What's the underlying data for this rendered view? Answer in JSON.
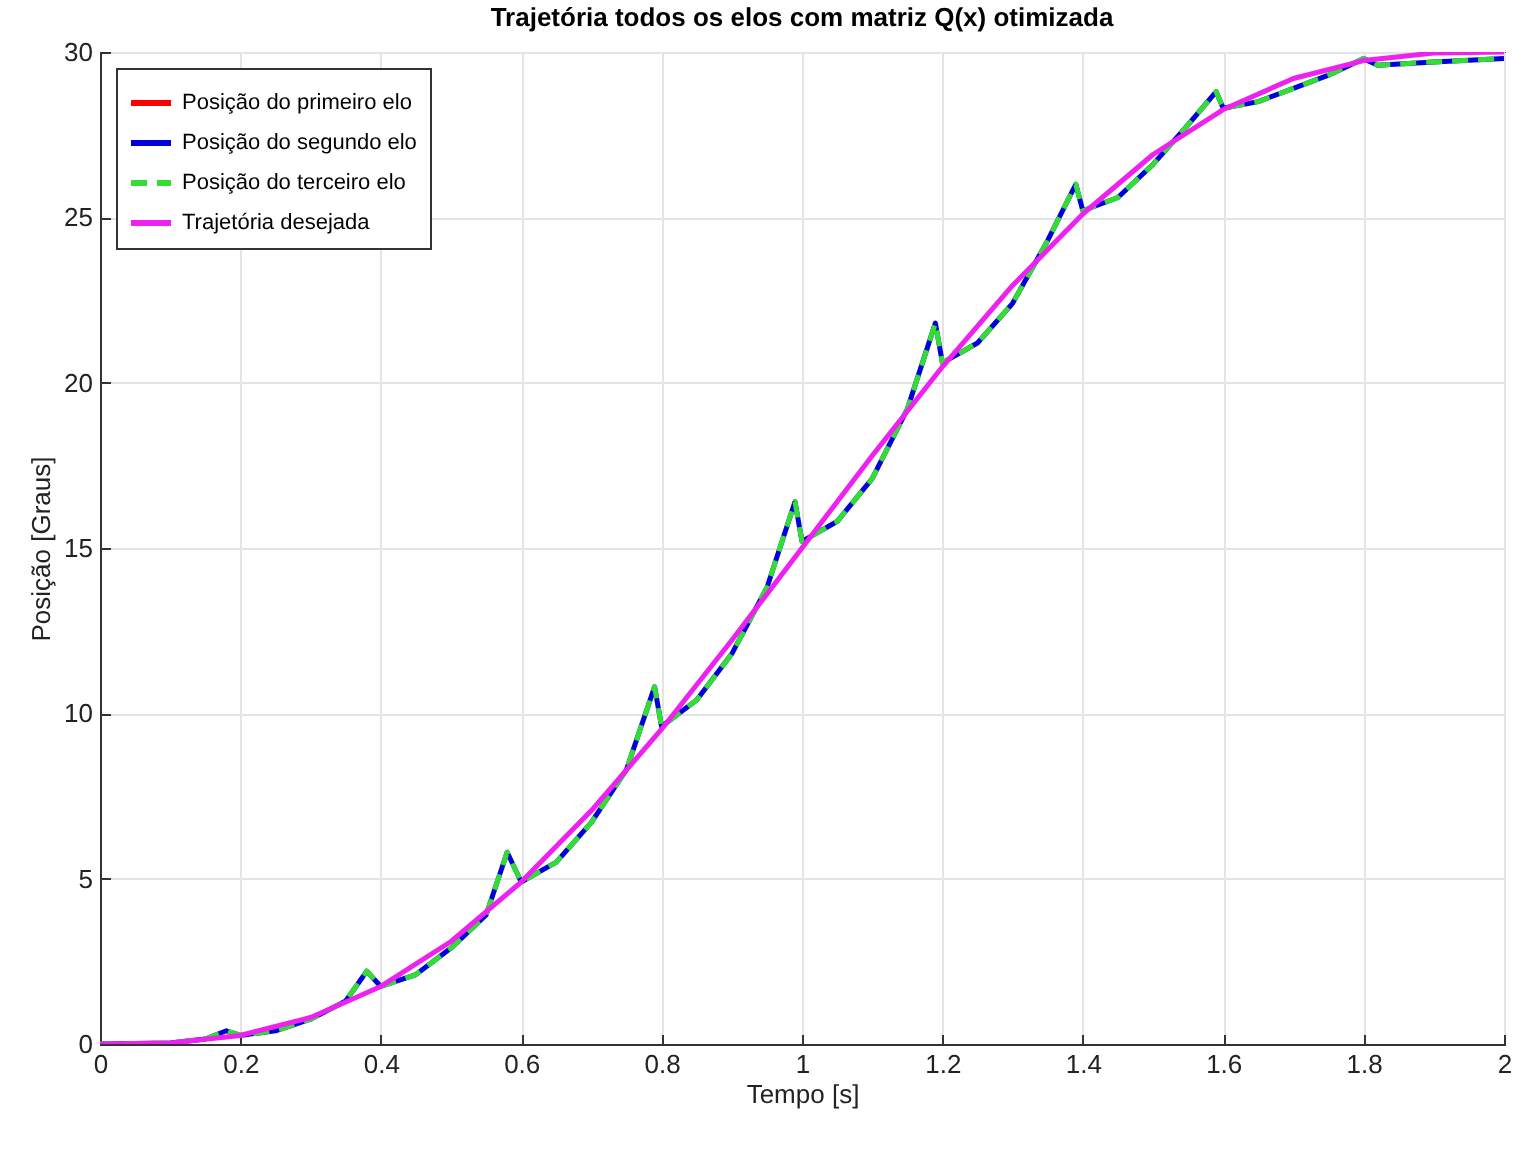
{
  "chart_data": {
    "type": "line",
    "title": "Trajetória todos os elos com matriz Q(x) otimizada",
    "xlabel": "Tempo [s]",
    "ylabel": "Posição [Graus]",
    "xlim": [
      0,
      2
    ],
    "xticks": [
      0,
      0.2,
      0.4,
      0.6,
      0.8,
      1,
      1.2,
      1.4,
      1.6,
      1.8,
      2
    ],
    "ylim": [
      0,
      30
    ],
    "yticks": [
      0,
      5,
      10,
      15,
      20,
      25,
      30
    ],
    "grid": true,
    "legend": "top left",
    "x": [
      0,
      0.1,
      0.15,
      0.18,
      0.2,
      0.25,
      0.3,
      0.35,
      0.38,
      0.4,
      0.45,
      0.5,
      0.55,
      0.58,
      0.6,
      0.65,
      0.7,
      0.75,
      0.79,
      0.8,
      0.85,
      0.9,
      0.95,
      0.99,
      1.0,
      1.05,
      1.1,
      1.15,
      1.19,
      1.2,
      1.25,
      1.3,
      1.35,
      1.39,
      1.4,
      1.45,
      1.5,
      1.55,
      1.59,
      1.6,
      1.65,
      1.7,
      1.75,
      1.8,
      1.82,
      1.9,
      2.0
    ],
    "series": [
      {
        "name": "Posição do primeiro elo",
        "color": "#ff0000",
        "line_style": "solid",
        "values": [
          null,
          null,
          null,
          null,
          null,
          null,
          null,
          null,
          null,
          null,
          null,
          null,
          null,
          null,
          null,
          null,
          null,
          null,
          null,
          null,
          null,
          null,
          null,
          null,
          null,
          null,
          null,
          null,
          null,
          null,
          null,
          null,
          null,
          null,
          null,
          null,
          null,
          null,
          null,
          null,
          null,
          null,
          null,
          null,
          null,
          null,
          null
        ]
      },
      {
        "name": "Posição do segundo elo",
        "color": "#0000dd",
        "line_style": "solid",
        "values": [
          0,
          0.03,
          0.15,
          0.4,
          0.26,
          0.4,
          0.75,
          1.3,
          2.2,
          1.74,
          2.1,
          2.9,
          3.9,
          5.8,
          4.9,
          5.5,
          6.7,
          8.3,
          10.8,
          9.6,
          10.4,
          11.8,
          13.8,
          16.4,
          15.2,
          15.8,
          17.1,
          19.2,
          21.8,
          20.6,
          21.2,
          22.4,
          24.3,
          26.0,
          25.2,
          25.6,
          26.6,
          27.8,
          28.8,
          28.3,
          28.5,
          28.9,
          29.3,
          29.8,
          29.6,
          29.7,
          29.8
        ]
      },
      {
        "name": "Posição do terceiro elo",
        "color": "#33dd33",
        "line_style": "dashed",
        "values": [
          0,
          0.03,
          0.15,
          0.4,
          0.26,
          0.4,
          0.75,
          1.3,
          2.2,
          1.74,
          2.1,
          2.9,
          3.9,
          5.8,
          4.9,
          5.5,
          6.7,
          8.3,
          10.8,
          9.6,
          10.4,
          11.8,
          13.8,
          16.4,
          15.2,
          15.8,
          17.1,
          19.2,
          21.8,
          20.6,
          21.2,
          22.4,
          24.3,
          26.0,
          25.2,
          25.6,
          26.6,
          27.8,
          28.8,
          28.3,
          28.5,
          28.9,
          29.3,
          29.8,
          29.6,
          29.7,
          29.8
        ]
      },
      {
        "name": "Trajetória desejada",
        "color": "#ee22ee",
        "line_style": "solid",
        "x": [
          0,
          0.1,
          0.2,
          0.3,
          0.4,
          0.5,
          0.6,
          0.7,
          0.8,
          0.9,
          1.0,
          1.1,
          1.2,
          1.3,
          1.4,
          1.5,
          1.6,
          1.7,
          1.8,
          1.9,
          2.0
        ],
        "values": [
          0,
          0.03,
          0.26,
          0.8,
          1.74,
          3.1,
          4.9,
          7.06,
          9.52,
          12.21,
          15,
          17.79,
          20.48,
          22.94,
          25.1,
          26.9,
          28.26,
          29.2,
          29.74,
          29.97,
          30
        ]
      }
    ]
  }
}
